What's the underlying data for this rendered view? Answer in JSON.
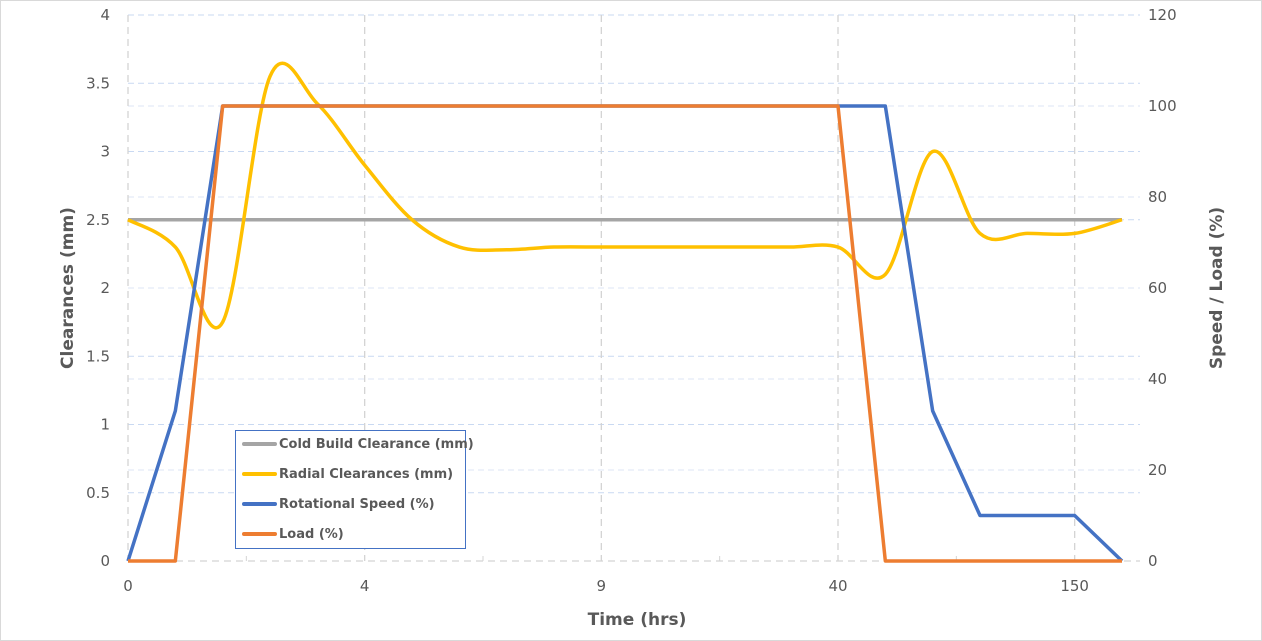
{
  "chart_data": {
    "type": "line",
    "title": "",
    "xlabel": "Time (hrs)",
    "ylabel": "Clearances (mm)",
    "y2label": "Speed / Load (%)",
    "ylim": [
      0,
      4
    ],
    "y2lim": [
      0,
      120
    ],
    "x_tick_labels": [
      "0",
      "4",
      "9",
      "40",
      "150"
    ],
    "y_ticks": [
      "0",
      "0.5",
      "1",
      "1.5",
      "2",
      "2.5",
      "3",
      "3.5",
      "4"
    ],
    "y2_ticks": [
      "0",
      "20",
      "40",
      "60",
      "80",
      "100",
      "120"
    ],
    "grid": true,
    "legend_position": "inside-bottom-left",
    "x_index": [
      0,
      1,
      2,
      3,
      4,
      5,
      6,
      7,
      8,
      9,
      10,
      11,
      12,
      13,
      14,
      15,
      16,
      17,
      18,
      19,
      20,
      21
    ],
    "series": [
      {
        "name": "Cold Build Clearance (mm)",
        "axis": "left",
        "color": "#a5a5a5",
        "smooth": false,
        "values": [
          2.5,
          2.5,
          2.5,
          2.5,
          2.5,
          2.5,
          2.5,
          2.5,
          2.5,
          2.5,
          2.5,
          2.5,
          2.5,
          2.5,
          2.5,
          2.5,
          2.5,
          2.5,
          2.5,
          2.5,
          2.5,
          2.5
        ]
      },
      {
        "name": "Radial Clearances (mm)",
        "axis": "left",
        "color": "#ffc000",
        "smooth": true,
        "values": [
          2.5,
          2.3,
          1.75,
          3.55,
          3.35,
          2.9,
          2.5,
          2.3,
          2.28,
          2.3,
          2.3,
          2.3,
          2.3,
          2.3,
          2.3,
          2.3,
          2.1,
          3.0,
          2.4,
          2.4,
          2.4,
          2.5
        ]
      },
      {
        "name": "Rotational Speed (%)",
        "axis": "right",
        "color": "#4472c4",
        "smooth": false,
        "values": [
          0,
          33,
          100,
          100,
          100,
          100,
          100,
          100,
          100,
          100,
          100,
          100,
          100,
          100,
          100,
          100,
          100,
          33,
          10,
          10,
          10,
          0
        ]
      },
      {
        "name": "Load (%)",
        "axis": "right",
        "color": "#ed7d31",
        "smooth": false,
        "values": [
          0,
          0,
          100,
          100,
          100,
          100,
          100,
          100,
          100,
          100,
          100,
          100,
          100,
          100,
          100,
          100,
          0,
          0,
          0,
          0,
          0,
          0
        ]
      }
    ]
  },
  "legend": {
    "items": [
      {
        "label": "Cold Build Clearance (mm)",
        "color": "#a5a5a5"
      },
      {
        "label": "Radial Clearances (mm)",
        "color": "#ffc000"
      },
      {
        "label": "Rotational Speed (%)",
        "color": "#4472c4"
      },
      {
        "label": "Load (%)",
        "color": "#ed7d31"
      }
    ]
  }
}
